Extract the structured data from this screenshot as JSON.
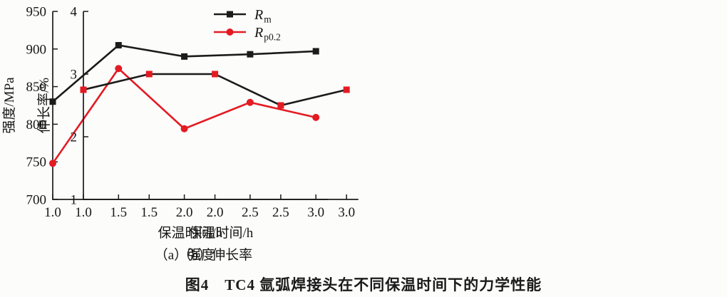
{
  "page": {
    "background": "#fcfcfb",
    "caption": "图4　TC4 氩弧焊接头在不同保温时间下的力学性能"
  },
  "colors": {
    "axis": "#1b1b1b",
    "text": "#161616",
    "black_series": "#1b1b1b",
    "red_series": "#e31b23"
  },
  "chart_data": [
    {
      "id": "a",
      "type": "line",
      "subtitle": "（a）强度",
      "xlabel": "保温时间/h",
      "ylabel": "强度/MPa",
      "x": [
        1.0,
        1.5,
        2.0,
        2.5,
        3.0
      ],
      "xtick_labels": [
        "1.0",
        "1.5",
        "2.0",
        "2.5",
        "3.0"
      ],
      "xlim": [
        1.0,
        3.09
      ],
      "ylim": [
        700,
        950
      ],
      "yticks": [
        950,
        900,
        850,
        800,
        750,
        700
      ],
      "grid": false,
      "legend": {
        "visible": true,
        "position": "top-inside"
      },
      "series": [
        {
          "name": "Rm",
          "label_main": "R",
          "label_sub": "m",
          "marker": "square",
          "line_color": "#1b1b1b",
          "marker_color": "#1b1b1b",
          "values": [
            830,
            905,
            890,
            893,
            897
          ]
        },
        {
          "name": "Rp0.2",
          "label_main": "R",
          "label_sub": "p0.2",
          "marker": "circle",
          "line_color": "#e31b23",
          "marker_color": "#e31b23",
          "values": [
            748,
            874,
            794,
            829,
            809
          ]
        }
      ]
    },
    {
      "id": "b",
      "type": "line",
      "subtitle": "（b）伸长率",
      "xlabel": "保温时间/h",
      "ylabel": "伸长率/%",
      "x": [
        1.0,
        1.5,
        2.0,
        2.5,
        3.0
      ],
      "xtick_labels": [
        "1.0",
        "1.5",
        "2.0",
        "2.5",
        "3.0"
      ],
      "xlim": [
        1.0,
        3.09
      ],
      "ylim": [
        1,
        4
      ],
      "yticks": [
        4,
        3,
        2,
        1
      ],
      "grid": false,
      "legend": {
        "visible": false
      },
      "series": [
        {
          "name": "elongation",
          "label_main": "",
          "label_sub": "",
          "marker": "square",
          "line_color": "#1b1b1b",
          "marker_color": "#e31b23",
          "values": [
            2.75,
            3.0,
            3.0,
            2.5,
            2.75
          ]
        }
      ]
    }
  ]
}
